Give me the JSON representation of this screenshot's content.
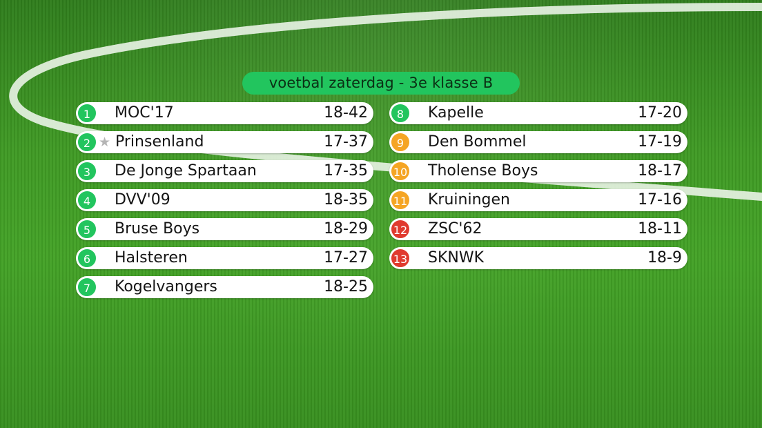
{
  "title": "voetbal zaterdag - 3e klasse B",
  "colors": {
    "green": "#22c55e",
    "orange": "#f5a524",
    "red": "#e03a2f"
  },
  "left_column": [
    {
      "rank": "1",
      "team": "MOC'17",
      "score": "18-42",
      "status": "green"
    },
    {
      "rank": "2",
      "team": "Prinsenland",
      "score": "17-37",
      "status": "green",
      "icon": "star-icon"
    },
    {
      "rank": "3",
      "team": "De Jonge Spartaan",
      "score": "17-35",
      "status": "green"
    },
    {
      "rank": "4",
      "team": "DVV'09",
      "score": "18-35",
      "status": "green"
    },
    {
      "rank": "5",
      "team": "Bruse Boys",
      "score": "18-29",
      "status": "green"
    },
    {
      "rank": "6",
      "team": "Halsteren",
      "score": "17-27",
      "status": "green"
    },
    {
      "rank": "7",
      "team": "Kogelvangers",
      "score": "18-25",
      "status": "green"
    }
  ],
  "right_column": [
    {
      "rank": "8",
      "team": "Kapelle",
      "score": "17-20",
      "status": "green"
    },
    {
      "rank": "9",
      "team": "Den Bommel",
      "score": "17-19",
      "status": "orange"
    },
    {
      "rank": "10",
      "team": "Tholense Boys",
      "score": "18-17",
      "status": "orange"
    },
    {
      "rank": "11",
      "team": "Kruiningen",
      "score": "17-16",
      "status": "orange"
    },
    {
      "rank": "12",
      "team": "ZSC'62",
      "score": "18-11",
      "status": "red"
    },
    {
      "rank": "13",
      "team": "SKNWK",
      "score": "18-9",
      "status": "red"
    }
  ]
}
